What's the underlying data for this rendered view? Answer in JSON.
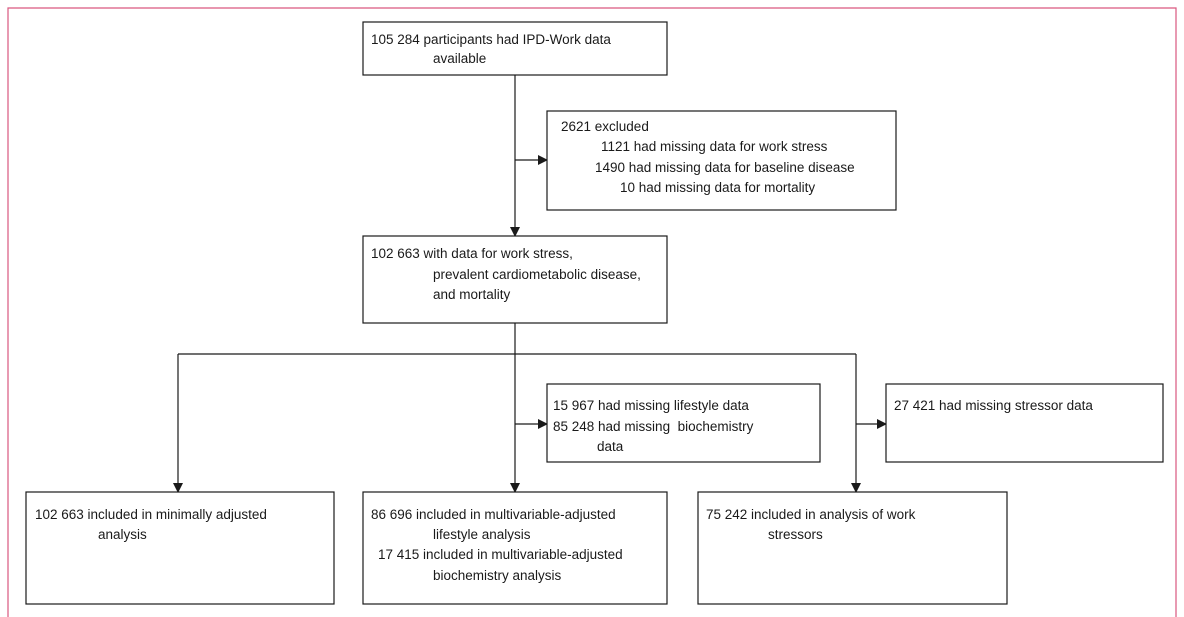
{
  "nodes": [
    {
      "lines": [
        "105 284 participants had IPD-Work data",
        "available"
      ]
    },
    {
      "lines": [
        "2621 excluded",
        "1121 had missing data for work stress",
        "1490 had missing data for baseline disease",
        "10 had missing data for mortality"
      ]
    },
    {
      "lines": [
        "102 663 with data for work stress,",
        "prevalent cardiometabolic disease,",
        "and mortality"
      ]
    },
    {
      "lines": [
        "15 967 had missing lifestyle data",
        "85 248 had missing  biochemistry",
        "data"
      ]
    },
    {
      "lines": [
        "27 421 had missing stressor data"
      ]
    },
    {
      "lines": [
        "102 663 included in minimally adjusted",
        "analysis"
      ]
    },
    {
      "lines": [
        "86 696 included in multivariable-adjusted",
        "lifestyle analysis",
        "17 415 included in multivariable-adjusted",
        "biochemistry analysis"
      ]
    },
    {
      "lines": [
        "75 242 included in analysis of work",
        "stressors"
      ]
    }
  ]
}
